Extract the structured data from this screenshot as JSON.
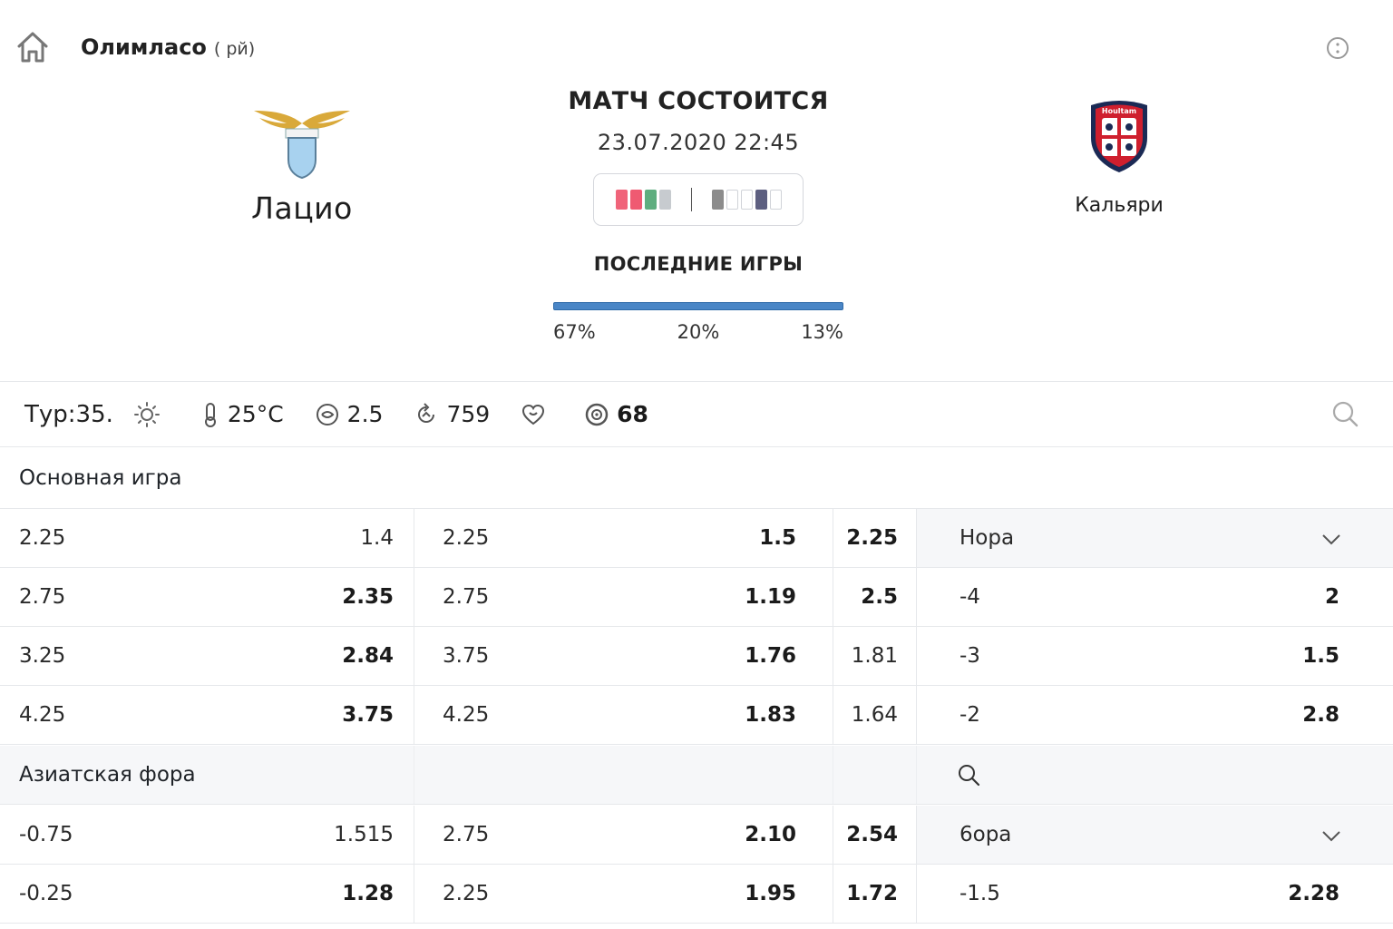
{
  "header": {
    "league": "Олимласо",
    "league_sub": "( рй)",
    "status": "МАТЧ СОСТОИТСЯ",
    "datetime": "23.07.2020 22:45",
    "last_games_label": "ПОСЛЕДНИЕ ИГРЫ",
    "last_games_pcts": [
      "67%",
      "20%",
      "13%"
    ]
  },
  "teams": {
    "home": {
      "name": "Лацио",
      "logo": "lazio-eagle-crest"
    },
    "away": {
      "name": "Кальяри",
      "logo": "cagliari-shield-crest",
      "logo_text": "Houltam"
    }
  },
  "form": {
    "home": [
      "#f0647a",
      "#ef5a72",
      "#5fae7f",
      "#c7cbcf"
    ],
    "away": [
      "#8c8c8c",
      "#ffffff",
      "#ffffff",
      "#5d5f80",
      "#ffffff"
    ]
  },
  "info": {
    "round": "Тур:35.",
    "temperature": "25°C",
    "value1": "2.5",
    "value2": "759",
    "value3": "68"
  },
  "colors": {
    "bar": "#4a86c6",
    "panel_bg": "#f6f7f9",
    "border": "#e6e8eb"
  },
  "sections": {
    "main_game": "Основная игра",
    "asian_handicap": "Азиатская фора"
  },
  "main_rows": [
    [
      "2.25",
      "1.4",
      "2.25",
      "1.5",
      "2.25",
      "Нора",
      ""
    ],
    [
      "2.75",
      "2.35",
      "2.75",
      "1.19",
      "2.5",
      "-4",
      "2"
    ],
    [
      "3.25",
      "2.84",
      "3.75",
      "1.76",
      "1.81",
      "-3",
      "1.5"
    ],
    [
      "4.25",
      "3.75",
      "4.25",
      "1.83",
      "1.64",
      "-2",
      "2.8"
    ]
  ],
  "asian_rows": [
    [
      "-0.75",
      "1.515",
      "2.75",
      "2.10",
      "2.54",
      "6ора",
      ""
    ],
    [
      "-0.25",
      "1.28",
      "2.25",
      "1.95",
      "1.72",
      "-1.5",
      "2.28"
    ]
  ]
}
